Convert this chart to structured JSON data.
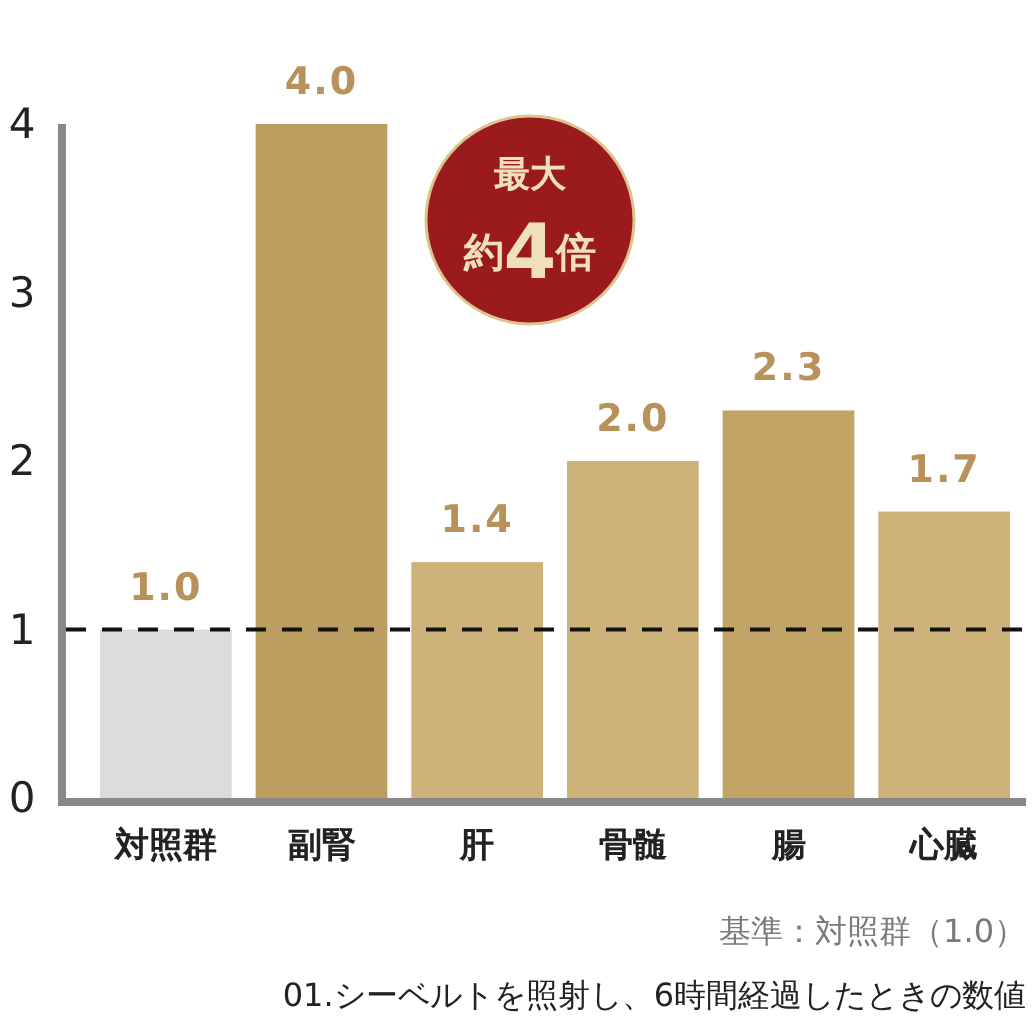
{
  "chart_data": {
    "type": "bar",
    "categories": [
      "対照群",
      "副腎",
      "肝",
      "骨髄",
      "腸",
      "心臓"
    ],
    "values": [
      1.0,
      4.0,
      1.4,
      2.0,
      2.3,
      1.7
    ],
    "colors": [
      "#dcdcdc",
      "#bb9d5f",
      "#cdb27a",
      "#cdb27a",
      "#c1a466",
      "#cdb27a"
    ],
    "value_labels": [
      "1.0",
      "4.0",
      "1.4",
      "2.0",
      "2.3",
      "1.7"
    ],
    "ylim": [
      0,
      4
    ],
    "yticks": [
      0,
      1,
      2,
      3,
      4
    ],
    "ref_lines": [
      {
        "axis": "y",
        "value": 1,
        "color": "#111111",
        "line_style": "dashed"
      }
    ],
    "annotations": [
      "最大",
      "約4倍",
      "基準：対照群（1.0）",
      "01.シーベルトを照射し、6時間経過したときの数値"
    ]
  }
}
